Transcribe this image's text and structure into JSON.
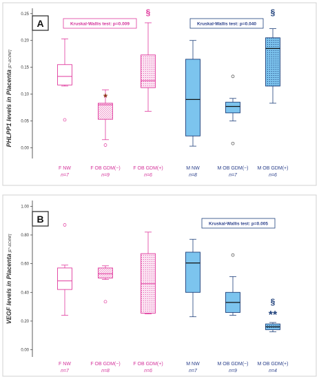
{
  "colors": {
    "female": "#e0399d",
    "female_text": "#d4329a",
    "female_fill": "#fbe3f2",
    "male": "#1d3f7a",
    "male_text": "#2a3f8a",
    "male_fill": "#7cc4ee",
    "star_female": "#8b2e12",
    "sig_female": "#e0399d",
    "sig_male": "#1d3f7a"
  },
  "chart_data": [
    {
      "type": "box",
      "panel": "A",
      "ylabel": "PHLPP1 levels in Placenta",
      "yunit": "[E^-ΔCt/NF]",
      "ylim": [
        -0.02,
        0.26
      ],
      "yticks": [
        "0.00",
        "0.05",
        "0.10",
        "0.15",
        "0.20",
        "0.25"
      ],
      "yticks_values": [
        0,
        0.05,
        0.1,
        0.15,
        0.2,
        0.25
      ],
      "kruskal": [
        {
          "text": "Kruskal-Wallis test: p=0.009",
          "group": "female"
        },
        {
          "text": "Kruskal-Wallis test: p=0.040",
          "group": "male"
        }
      ],
      "groups": [
        {
          "label": "F NW",
          "n": "n=7",
          "sex": "female",
          "pattern": "plain",
          "min": 0.115,
          "q1": 0.117,
          "median": 0.133,
          "q3": 0.155,
          "max": 0.203,
          "outliers": [
            0.052
          ],
          "marker": ""
        },
        {
          "label": "F OB GDM(−)",
          "n": "n=9",
          "sex": "female",
          "pattern": "hatch",
          "min": 0.015,
          "q1": 0.053,
          "median": 0.08,
          "q3": 0.083,
          "max": 0.108,
          "outliers": [
            0.005
          ],
          "marker": "*"
        },
        {
          "label": "F OB GDM(+)",
          "n": "n=6",
          "sex": "female",
          "pattern": "dots",
          "min": 0.068,
          "q1": 0.112,
          "median": 0.125,
          "q3": 0.173,
          "max": 0.233,
          "outliers": [],
          "marker": "§"
        },
        {
          "label": "M NW",
          "n": "n=8",
          "sex": "male",
          "pattern": "plain",
          "min": 0.003,
          "q1": 0.022,
          "median": 0.09,
          "q3": 0.165,
          "max": 0.2,
          "outliers": [],
          "marker": ""
        },
        {
          "label": "M OB GDM(−)",
          "n": "n=7",
          "sex": "male",
          "pattern": "plain",
          "min": 0.05,
          "q1": 0.065,
          "median": 0.077,
          "q3": 0.085,
          "max": 0.092,
          "outliers": [
            0.133,
            0.008
          ],
          "marker": ""
        },
        {
          "label": "M OB GDM(+)",
          "n": "n=6",
          "sex": "male",
          "pattern": "dots",
          "min": 0.083,
          "q1": 0.115,
          "median": 0.185,
          "q3": 0.205,
          "max": 0.222,
          "outliers": [],
          "marker": "§"
        }
      ]
    },
    {
      "type": "box",
      "panel": "B",
      "ylabel": "VEGF levels in Placenta",
      "yunit": "[E^-ΔCt/NF]",
      "ylim": [
        -0.05,
        1.04
      ],
      "yticks": [
        "0.00",
        "0.20",
        "0.40",
        "0.60",
        "0.80",
        "1.00"
      ],
      "yticks_values": [
        0,
        0.2,
        0.4,
        0.6,
        0.8,
        1.0
      ],
      "kruskal": [
        {
          "text": "Kruskal-Wallis test: p=0.005",
          "group": "male"
        }
      ],
      "groups": [
        {
          "label": "F NW",
          "n": "n=7",
          "sex": "female",
          "pattern": "plain",
          "min": 0.24,
          "q1": 0.42,
          "median": 0.48,
          "q3": 0.57,
          "max": 0.59,
          "outliers": [
            0.87
          ],
          "marker": ""
        },
        {
          "label": "F OB GDM(−)",
          "n": "n=8",
          "sex": "female",
          "pattern": "hatch",
          "min": 0.49,
          "q1": 0.5,
          "median": 0.53,
          "q3": 0.57,
          "max": 0.585,
          "outliers": [
            0.335
          ],
          "marker": ""
        },
        {
          "label": "F OB GDM(+)",
          "n": "n=6",
          "sex": "female",
          "pattern": "dots",
          "min": 0.25,
          "q1": 0.255,
          "median": 0.46,
          "q3": 0.67,
          "max": 0.82,
          "outliers": [],
          "marker": ""
        },
        {
          "label": "M NW",
          "n": "n=7",
          "sex": "male",
          "pattern": "plain",
          "min": 0.23,
          "q1": 0.4,
          "median": 0.605,
          "q3": 0.68,
          "max": 0.77,
          "outliers": [],
          "marker": ""
        },
        {
          "label": "M OB GDM(−)",
          "n": "n=9",
          "sex": "male",
          "pattern": "plain",
          "min": 0.24,
          "q1": 0.26,
          "median": 0.33,
          "q3": 0.4,
          "max": 0.51,
          "outliers": [
            0.66
          ],
          "marker": ""
        },
        {
          "label": "M OB GDM(+)",
          "n": "n=4",
          "sex": "male",
          "pattern": "dots",
          "min": 0.125,
          "q1": 0.14,
          "median": 0.16,
          "q3": 0.18,
          "max": 0.19,
          "outliers": [],
          "marker": "§ **"
        }
      ]
    }
  ]
}
